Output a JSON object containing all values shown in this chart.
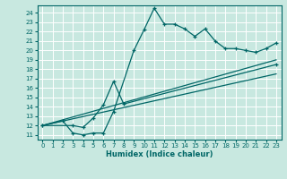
{
  "xlabel": "Humidex (Indice chaleur)",
  "bg_color": "#c8e8e0",
  "grid_color": "#ffffff",
  "line_color": "#006666",
  "xlim": [
    -0.5,
    23.5
  ],
  "ylim": [
    10.5,
    24.8
  ],
  "xticks": [
    0,
    1,
    2,
    3,
    4,
    5,
    6,
    7,
    8,
    9,
    10,
    11,
    12,
    13,
    14,
    15,
    16,
    17,
    18,
    19,
    20,
    21,
    22,
    23
  ],
  "yticks": [
    11,
    12,
    13,
    14,
    15,
    16,
    17,
    18,
    19,
    20,
    21,
    22,
    23,
    24
  ],
  "curve1_x": [
    0,
    2,
    3,
    4,
    5,
    6,
    7,
    9,
    10,
    11,
    12,
    13,
    14,
    15,
    16,
    17,
    18,
    19,
    20,
    21,
    22,
    23
  ],
  "curve1_y": [
    12,
    12.5,
    11.2,
    11.0,
    11.2,
    11.2,
    13.5,
    20.0,
    22.2,
    24.5,
    22.8,
    22.8,
    22.3,
    21.5,
    22.3,
    21.0,
    20.2,
    20.2,
    20.0,
    19.8,
    20.2,
    20.8
  ],
  "curve2_x": [
    0,
    3,
    4,
    5,
    6,
    7,
    8,
    23
  ],
  "curve2_y": [
    12,
    12.0,
    11.8,
    12.8,
    14.2,
    16.7,
    14.3,
    18.5
  ],
  "curve3_x": [
    0,
    23
  ],
  "curve3_y": [
    12.0,
    19.0
  ],
  "curve4_x": [
    0,
    23
  ],
  "curve4_y": [
    12.0,
    17.5
  ]
}
